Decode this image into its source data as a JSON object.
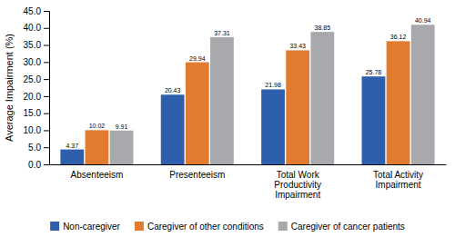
{
  "chart_data": {
    "type": "bar",
    "y_label": "Average Impairment (%)",
    "categories": [
      "Absenteeism",
      "Presenteeism",
      "Total Work\nProductivity\nImpairment",
      "Total Activity\nImpairment"
    ],
    "series": [
      {
        "name": "Non-caregiver",
        "color": "#2E5FAC",
        "values": [
          4.37,
          20.43,
          21.98,
          25.78
        ]
      },
      {
        "name": "Caregiver of other conditions",
        "color": "#E07B30",
        "values": [
          10.02,
          29.94,
          33.43,
          36.12
        ]
      },
      {
        "name": "Caregiver of cancer patients",
        "color": "#A8A9AD",
        "values": [
          9.91,
          37.31,
          38.85,
          40.94
        ]
      }
    ],
    "ylim": [
      0,
      45
    ],
    "yticks": [
      {
        "value": 0,
        "label": "0.0"
      },
      {
        "value": 5,
        "label": "5.0"
      },
      {
        "value": 10,
        "label": "10.0"
      },
      {
        "value": 15,
        "label": "15.0"
      },
      {
        "value": 20,
        "label": "20.0"
      },
      {
        "value": 25,
        "label": "25.0"
      },
      {
        "value": 30,
        "label": "30.0"
      },
      {
        "value": 35,
        "label": "35.0"
      },
      {
        "value": 40,
        "label": "40.0"
      },
      {
        "value": 45,
        "label": "45.0"
      }
    ],
    "grid": false,
    "legend": "bottom",
    "data_labels": true
  }
}
